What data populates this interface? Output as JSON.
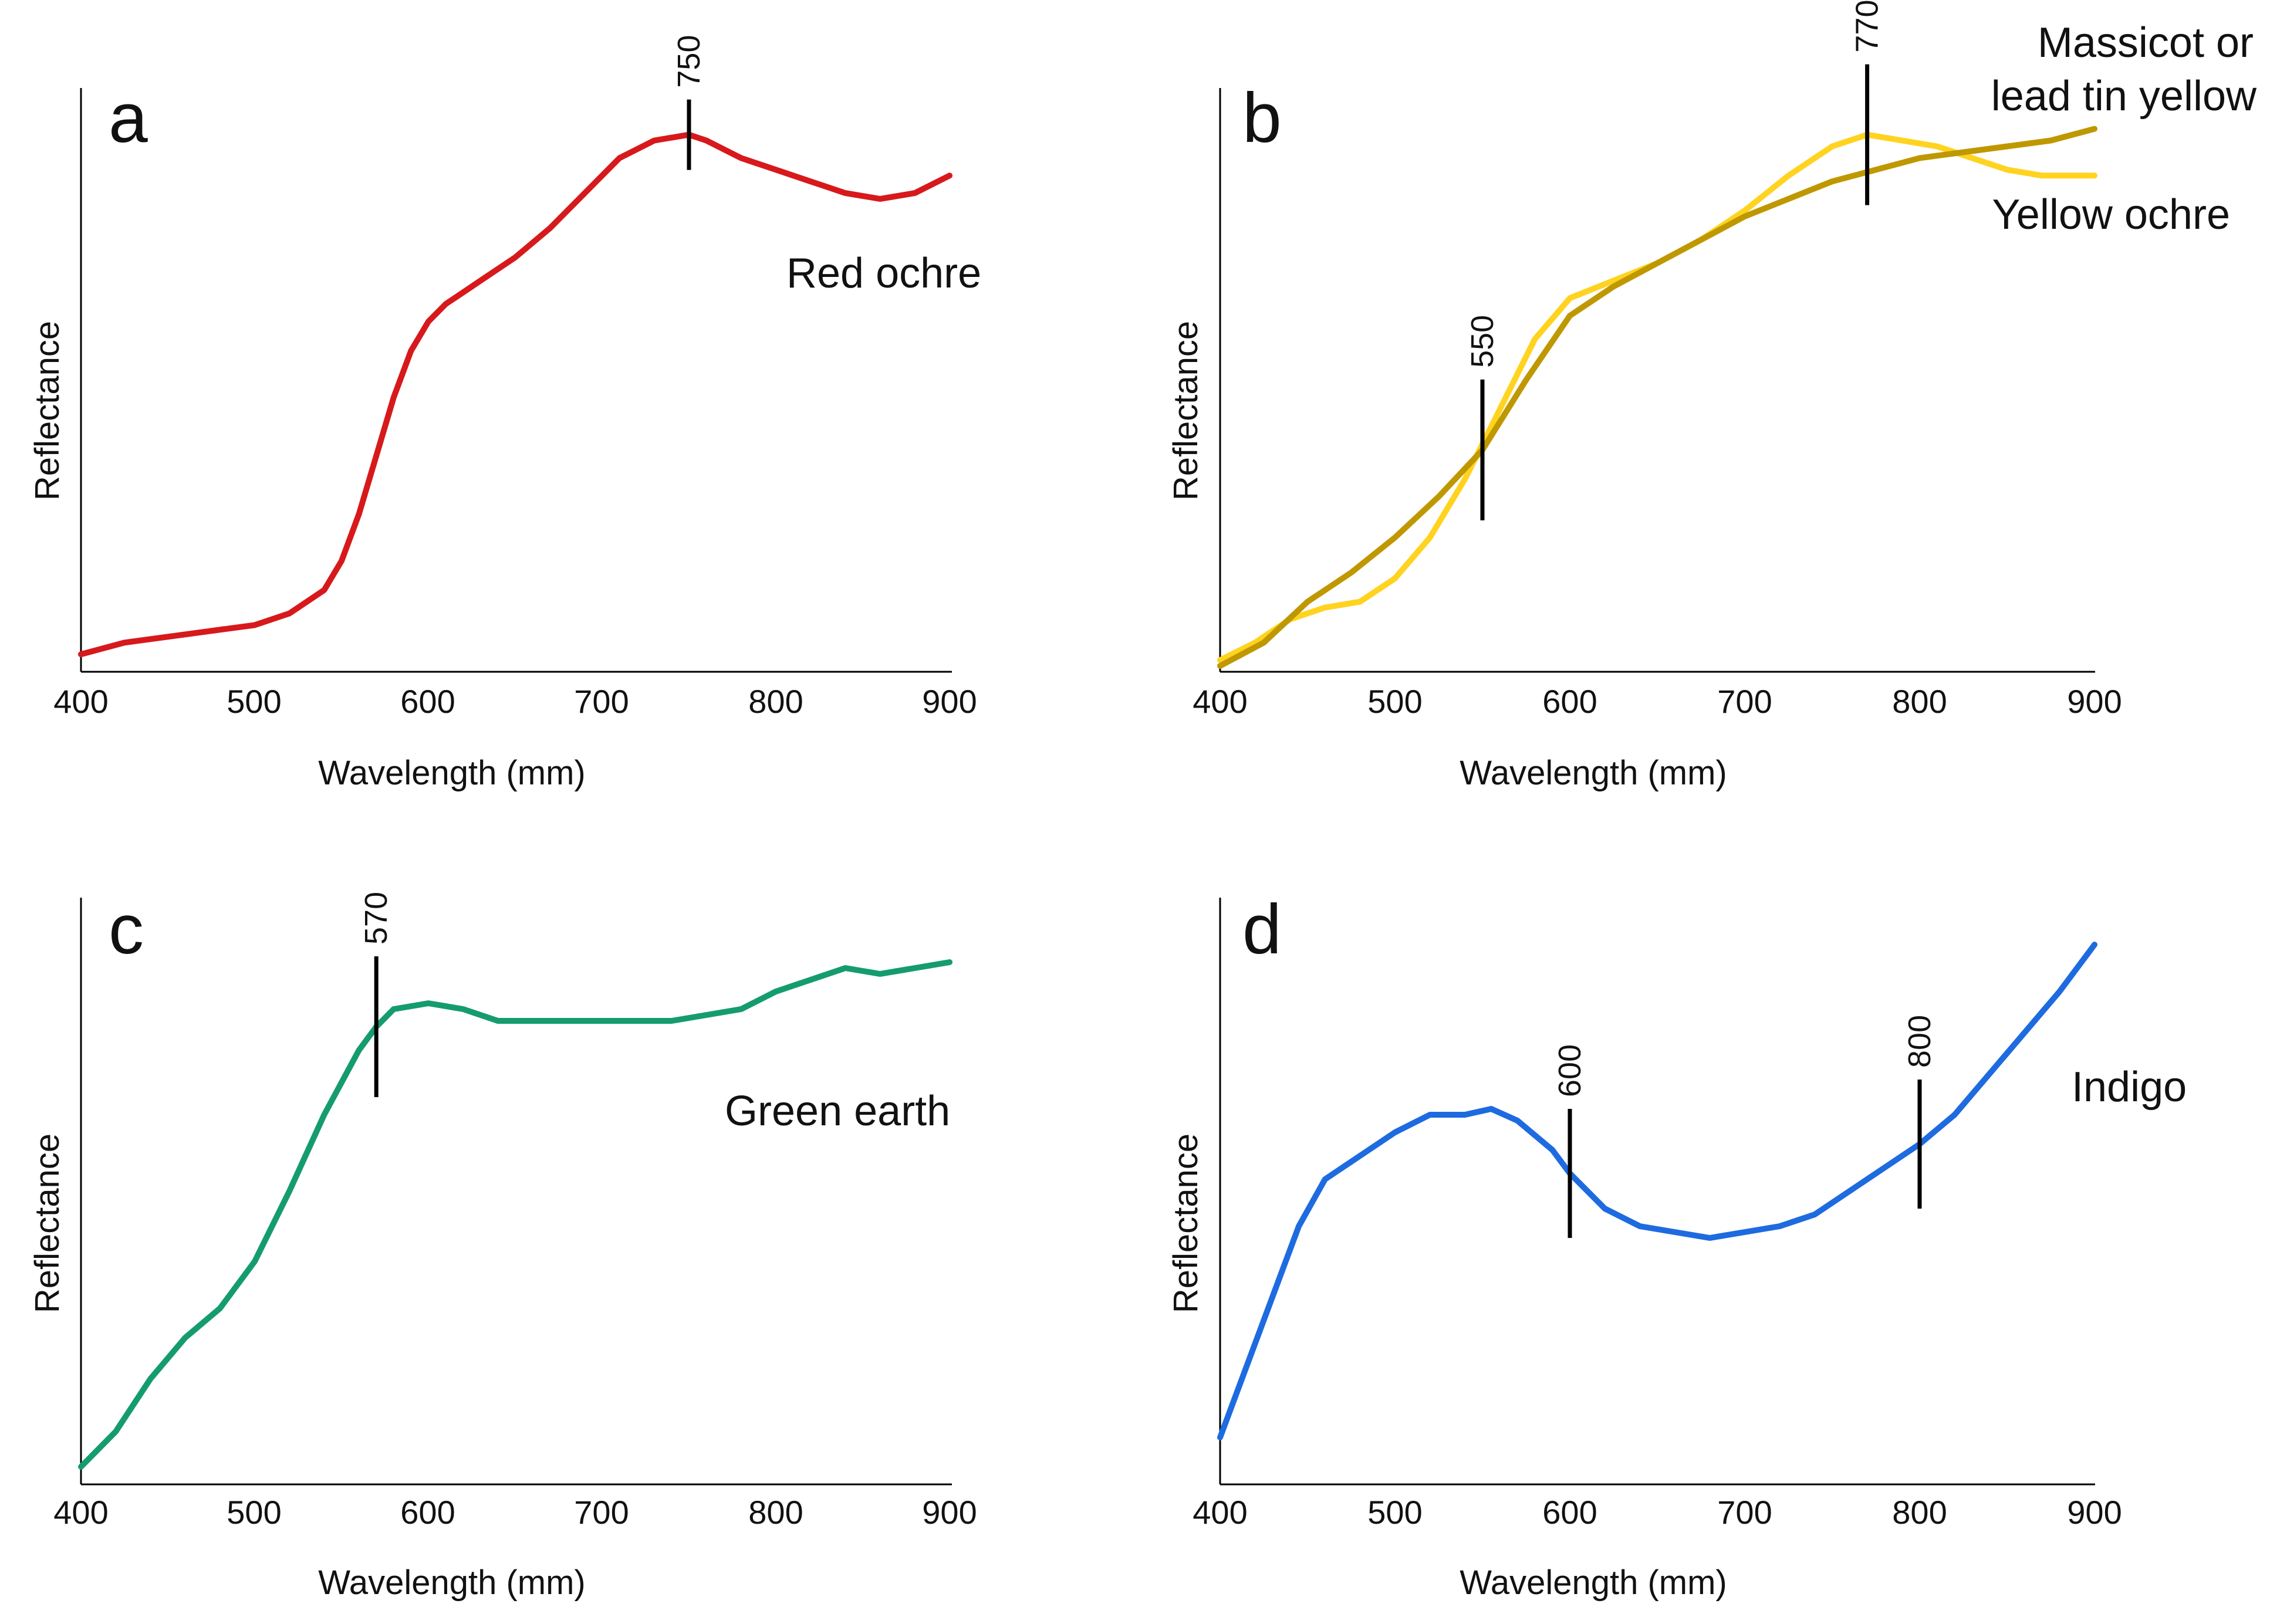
{
  "chart_data": [
    {
      "panel": "a",
      "type": "line",
      "xlabel": "Wavelength (mm)",
      "ylabel": "Reflectance",
      "xlim": [
        400,
        900
      ],
      "ylim": [
        0,
        1
      ],
      "xticks": [
        400,
        500,
        600,
        700,
        800,
        900
      ],
      "series": [
        {
          "name": "Red ochre",
          "color": "#d7191c",
          "x": [
            400,
            425,
            450,
            475,
            500,
            520,
            540,
            550,
            560,
            570,
            580,
            590,
            600,
            610,
            620,
            630,
            650,
            670,
            690,
            710,
            730,
            750,
            760,
            780,
            800,
            820,
            840,
            860,
            880,
            900
          ],
          "y": [
            0.03,
            0.05,
            0.06,
            0.07,
            0.08,
            0.1,
            0.14,
            0.19,
            0.27,
            0.37,
            0.47,
            0.55,
            0.6,
            0.63,
            0.65,
            0.67,
            0.71,
            0.76,
            0.82,
            0.88,
            0.91,
            0.92,
            0.91,
            0.88,
            0.86,
            0.84,
            0.82,
            0.81,
            0.82,
            0.85
          ]
        }
      ],
      "markers": [
        {
          "x": 750,
          "label": "750"
        }
      ]
    },
    {
      "panel": "b",
      "type": "line",
      "xlabel": "Wavelength (mm)",
      "ylabel": "Reflectance",
      "xlim": [
        400,
        900
      ],
      "ylim": [
        0,
        1
      ],
      "xticks": [
        400,
        500,
        600,
        700,
        800,
        900
      ],
      "series": [
        {
          "name": "Massicot or lead tin yellow",
          "label_lines": [
            "Massicot or",
            "lead tin yellow"
          ],
          "color": "#ffd320",
          "x": [
            400,
            420,
            440,
            460,
            480,
            500,
            520,
            540,
            560,
            580,
            600,
            625,
            650,
            675,
            700,
            725,
            750,
            770,
            790,
            810,
            830,
            850,
            870,
            900
          ],
          "y": [
            0.02,
            0.05,
            0.09,
            0.11,
            0.12,
            0.16,
            0.23,
            0.33,
            0.45,
            0.57,
            0.64,
            0.67,
            0.7,
            0.74,
            0.79,
            0.85,
            0.9,
            0.92,
            0.91,
            0.9,
            0.88,
            0.86,
            0.85,
            0.85
          ]
        },
        {
          "name": "Yellow ochre",
          "color": "#bf9800",
          "x": [
            400,
            425,
            450,
            475,
            500,
            525,
            550,
            575,
            600,
            625,
            650,
            675,
            700,
            725,
            750,
            775,
            800,
            825,
            850,
            875,
            900
          ],
          "y": [
            0.01,
            0.05,
            0.12,
            0.17,
            0.23,
            0.3,
            0.38,
            0.5,
            0.61,
            0.66,
            0.7,
            0.74,
            0.78,
            0.81,
            0.84,
            0.86,
            0.88,
            0.89,
            0.9,
            0.91,
            0.93
          ]
        }
      ],
      "markers": [
        {
          "x": 550,
          "label": "550"
        },
        {
          "x": 770,
          "label": "770"
        }
      ]
    },
    {
      "panel": "c",
      "type": "line",
      "xlabel": "Wavelength (mm)",
      "ylabel": "Reflectance",
      "xlim": [
        400,
        900
      ],
      "ylim": [
        0,
        1
      ],
      "xticks": [
        400,
        500,
        600,
        700,
        800,
        900
      ],
      "series": [
        {
          "name": "Green earth",
          "color": "#159c6e",
          "x": [
            400,
            420,
            440,
            460,
            480,
            500,
            520,
            540,
            560,
            570,
            580,
            600,
            620,
            640,
            660,
            680,
            700,
            720,
            740,
            760,
            780,
            800,
            820,
            840,
            860,
            880,
            900
          ],
          "y": [
            0.03,
            0.09,
            0.18,
            0.25,
            0.3,
            0.38,
            0.5,
            0.63,
            0.74,
            0.78,
            0.81,
            0.82,
            0.81,
            0.79,
            0.79,
            0.79,
            0.79,
            0.79,
            0.79,
            0.8,
            0.81,
            0.84,
            0.86,
            0.88,
            0.87,
            0.88,
            0.89
          ]
        }
      ],
      "markers": [
        {
          "x": 570,
          "label": "570"
        }
      ]
    },
    {
      "panel": "d",
      "type": "line",
      "xlabel": "Wavelength (mm)",
      "ylabel": "Reflectance",
      "xlim": [
        400,
        900
      ],
      "ylim": [
        0,
        1
      ],
      "xticks": [
        400,
        500,
        600,
        700,
        800,
        900
      ],
      "series": [
        {
          "name": "Indigo",
          "color": "#1e6be0",
          "x": [
            400,
            415,
            430,
            445,
            460,
            480,
            500,
            520,
            540,
            555,
            570,
            590,
            600,
            620,
            640,
            660,
            680,
            700,
            720,
            740,
            760,
            780,
            800,
            820,
            840,
            860,
            880,
            900
          ],
          "y": [
            0.08,
            0.2,
            0.32,
            0.44,
            0.52,
            0.56,
            0.6,
            0.63,
            0.63,
            0.64,
            0.62,
            0.57,
            0.53,
            0.47,
            0.44,
            0.43,
            0.42,
            0.43,
            0.44,
            0.46,
            0.5,
            0.54,
            0.58,
            0.63,
            0.7,
            0.77,
            0.84,
            0.92
          ]
        }
      ],
      "markers": [
        {
          "x": 600,
          "label": "600"
        },
        {
          "x": 800,
          "label": "800"
        }
      ]
    }
  ]
}
